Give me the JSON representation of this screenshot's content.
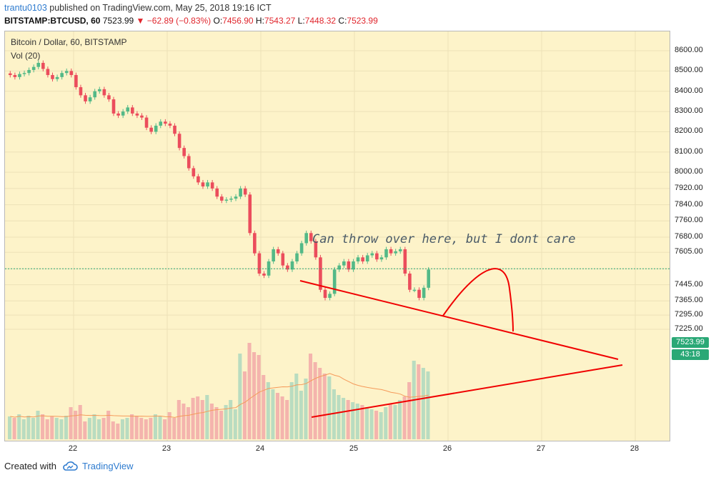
{
  "header": {
    "user": "trantu0103",
    "published": "published on TradingView.com, May 25, 2018 19:16 ICT",
    "symbol": "BITSTAMP:BTCUSD, 60",
    "price": "7523.99",
    "change": "−62.89 (−0.83%)",
    "o_label": "O:",
    "o": "7456.90",
    "h_label": "H:",
    "h": "7543.27",
    "l_label": "L:",
    "l": "7448.32",
    "c_label": "C:",
    "c": "7523.99"
  },
  "legend": {
    "title": "Bitcoin / Dollar, 60, BITSTAMP",
    "vol": "Vol (20)"
  },
  "annotation": "Can throw over here, but I dont care",
  "price_tag": {
    "price": "7523.99",
    "countdown": "43:18"
  },
  "footer": {
    "created": "Created with",
    "brand": "TradingView"
  },
  "colors": {
    "up": "#53b987",
    "down": "#eb4d5c",
    "trend": "#f00000",
    "bg": "#fdf3c9"
  },
  "chart_data": {
    "type": "candlestick",
    "yticks": [
      "8600.00",
      "8500.00",
      "8400.00",
      "8300.00",
      "8200.00",
      "8100.00",
      "8000.00",
      "7920.00",
      "7840.00",
      "7760.00",
      "7680.00",
      "7605.00",
      "7523.99",
      "7445.00",
      "7365.00",
      "7295.00",
      "7225.00"
    ],
    "xticks": [
      "22",
      "23",
      "24",
      "25",
      "26",
      "27",
      "28"
    ],
    "closes": [
      8480,
      8470,
      8485,
      8490,
      8505,
      8520,
      8540,
      8510,
      8480,
      8460,
      8470,
      8490,
      8500,
      8480,
      8420,
      8380,
      8350,
      8370,
      8400,
      8410,
      8380,
      8360,
      8290,
      8280,
      8300,
      8320,
      8290,
      8280,
      8270,
      8220,
      8200,
      8230,
      8250,
      8240,
      8230,
      8190,
      8120,
      8080,
      8020,
      7980,
      7950,
      7930,
      7950,
      7920,
      7880,
      7860,
      7865,
      7870,
      7880,
      7920,
      7890,
      7700,
      7600,
      7500,
      7490,
      7560,
      7620,
      7600,
      7540,
      7520,
      7560,
      7600,
      7650,
      7700,
      7660,
      7580,
      7420,
      7380,
      7400,
      7520,
      7540,
      7560,
      7520,
      7560,
      7580,
      7560,
      7590,
      7600,
      7570,
      7580,
      7620,
      7600,
      7610,
      7620,
      7500,
      7420,
      7420,
      7380,
      7430,
      7520
    ],
    "volumes": [
      32,
      30,
      35,
      28,
      33,
      30,
      40,
      35,
      28,
      32,
      30,
      28,
      33,
      45,
      40,
      48,
      25,
      30,
      35,
      28,
      30,
      40,
      25,
      22,
      28,
      30,
      35,
      33,
      30,
      28,
      30,
      35,
      32,
      28,
      38,
      30,
      55,
      50,
      45,
      58,
      60,
      55,
      62,
      50,
      45,
      40,
      48,
      55,
      42,
      120,
      95,
      135,
      122,
      118,
      90,
      80,
      70,
      65,
      60,
      55,
      80,
      92,
      68,
      85,
      120,
      108,
      100,
      92,
      88,
      70,
      62,
      58,
      55,
      52,
      50,
      48,
      45,
      42,
      40,
      38,
      45,
      50,
      48,
      55,
      60,
      80,
      110,
      105,
      100,
      95
    ]
  }
}
